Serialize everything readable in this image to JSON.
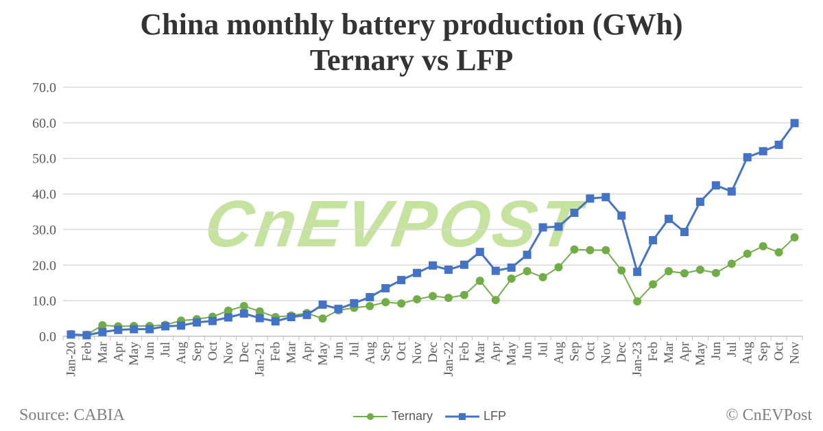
{
  "chart_data": {
    "type": "line",
    "title": "China monthly battery production (GWh)",
    "subtitle": "Ternary vs LFP",
    "ylim": [
      0,
      70
    ],
    "yticks": [
      "0.0",
      "10.0",
      "20.0",
      "30.0",
      "40.0",
      "50.0",
      "60.0",
      "70.0"
    ],
    "grid": true,
    "legend_position": "bottom",
    "categories": [
      "Jan-20",
      "Feb",
      "Mar",
      "Apr",
      "May",
      "Jun",
      "Jul",
      "Aug",
      "Sep",
      "Oct",
      "Nov",
      "Dec",
      "Jan-21",
      "Feb",
      "Mar",
      "Apr",
      "May",
      "Jun",
      "Jul",
      "Aug",
      "Sep",
      "Oct",
      "Nov",
      "Dec",
      "Jan-22",
      "Feb",
      "Mar",
      "Apr",
      "May",
      "Jun",
      "Jul",
      "Aug",
      "Sep",
      "Oct",
      "Nov",
      "Dec",
      "Jan-23",
      "Feb",
      "Mar",
      "Apr",
      "May",
      "Jun",
      "Jul",
      "Aug",
      "Sep",
      "Oct",
      "Nov"
    ],
    "series": [
      {
        "name": "Ternary",
        "color": "#70ad47",
        "marker": "circle",
        "values": [
          0.6,
          0.4,
          3.1,
          2.8,
          2.9,
          2.9,
          3.2,
          4.4,
          4.8,
          5.5,
          7.2,
          8.5,
          7.0,
          5.4,
          5.8,
          6.5,
          5.0,
          7.3,
          8.0,
          8.5,
          9.6,
          9.2,
          10.4,
          11.3,
          10.8,
          11.6,
          15.6,
          10.2,
          16.2,
          18.3,
          16.6,
          19.4,
          24.4,
          24.2,
          24.2,
          18.5,
          9.8,
          14.6,
          18.3,
          17.7,
          18.7,
          17.8,
          20.4,
          23.2,
          25.3,
          23.6,
          27.8
        ]
      },
      {
        "name": "LFP",
        "color": "#4472c4",
        "marker": "square",
        "values": [
          0.5,
          0.3,
          1.2,
          1.8,
          2.0,
          2.0,
          2.8,
          3.0,
          3.9,
          4.3,
          5.3,
          6.4,
          5.1,
          4.2,
          5.4,
          6.0,
          8.9,
          7.7,
          9.3,
          11.0,
          13.5,
          15.8,
          17.8,
          19.9,
          18.7,
          20.1,
          23.7,
          18.4,
          19.3,
          22.9,
          30.6,
          30.8,
          34.7,
          38.7,
          39.1,
          33.9,
          18.1,
          27.0,
          33.0,
          29.3,
          37.8,
          42.4,
          40.7,
          50.3,
          52.0,
          53.8,
          59.9
        ]
      }
    ]
  },
  "footer": {
    "source": "Source: CABIA",
    "copyright": "© CnEVPost"
  },
  "watermark": "CnEVPOST"
}
